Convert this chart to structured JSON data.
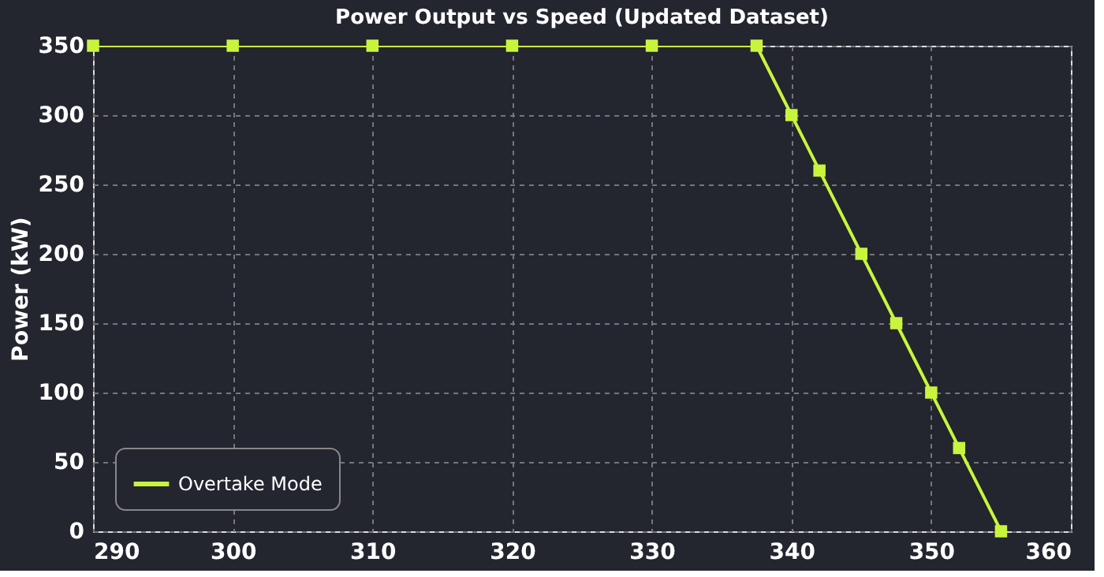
{
  "chart_data": {
    "type": "line",
    "title": "Power Output vs Speed (Updated Dataset)",
    "ylabel": "Power (kW)",
    "x": [
      290,
      300,
      310,
      320,
      330,
      337.5,
      340,
      342,
      345,
      347.5,
      350,
      352,
      355
    ],
    "series": [
      {
        "name": "Overtake Mode",
        "color": "#c8f53c",
        "values": [
          350,
          350,
          350,
          350,
          350,
          350,
          300,
          260,
          200,
          150,
          100,
          60,
          0
        ]
      }
    ],
    "xlim": [
      290,
      360
    ],
    "xticks": [
      290,
      300,
      310,
      320,
      330,
      340,
      350,
      360
    ],
    "ylim": [
      0,
      350
    ],
    "yticks": [
      0,
      50,
      100,
      150,
      200,
      250,
      300,
      350
    ],
    "grid": true,
    "legend": "bottom left",
    "marker": "square",
    "line_style": "solid"
  }
}
